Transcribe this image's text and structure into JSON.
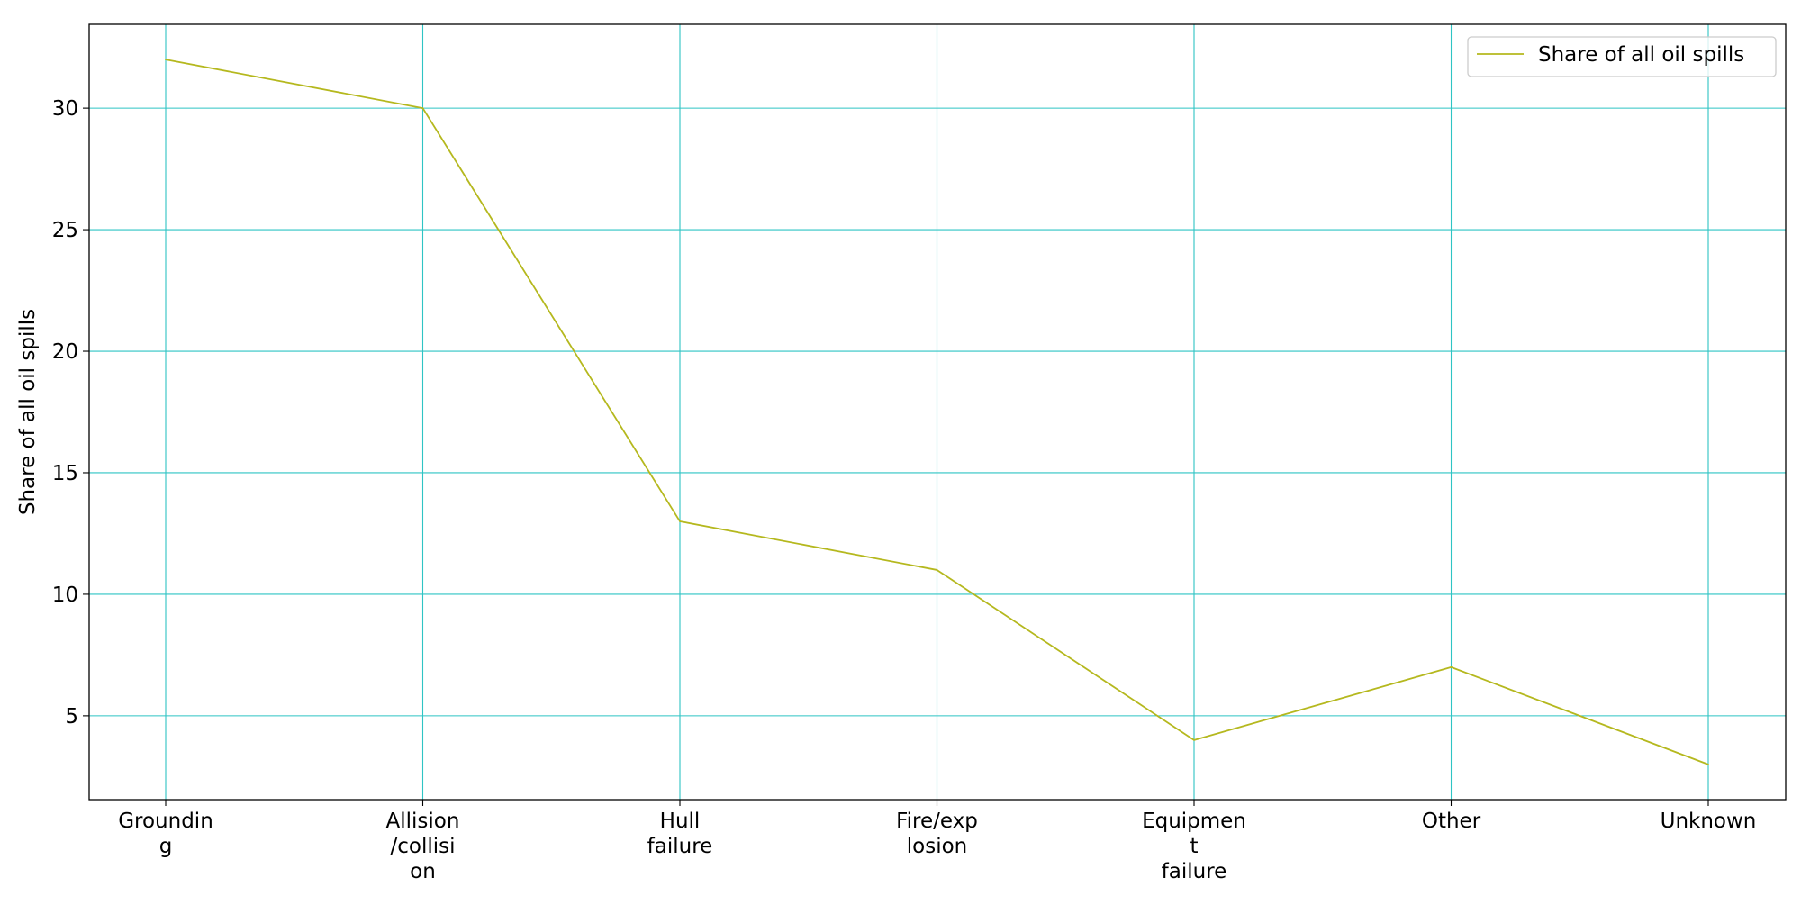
{
  "chart_data": {
    "type": "line",
    "categories": [
      [
        "Groundin",
        "g"
      ],
      [
        "Allision",
        "/collisi",
        "on"
      ],
      [
        "Hull",
        "failure"
      ],
      [
        "Fire/exp",
        "losion"
      ],
      [
        "Equipmen",
        "t",
        "failure"
      ],
      [
        "Other"
      ],
      [
        "Unknown"
      ]
    ],
    "series": [
      {
        "name": "Share of all oil spills",
        "values": [
          32,
          30,
          13,
          11,
          4,
          7,
          3
        ]
      }
    ],
    "ylabel": "Share of all oil spills",
    "xlabel": "",
    "yticks": [
      5,
      10,
      15,
      20,
      25,
      30
    ],
    "ylim": [
      1.55,
      33.45
    ],
    "grid": true,
    "legend_position": "upper right",
    "colors": {
      "line": "#b5b81e",
      "grid": "#2ec4c4",
      "axes": "#000000"
    }
  }
}
